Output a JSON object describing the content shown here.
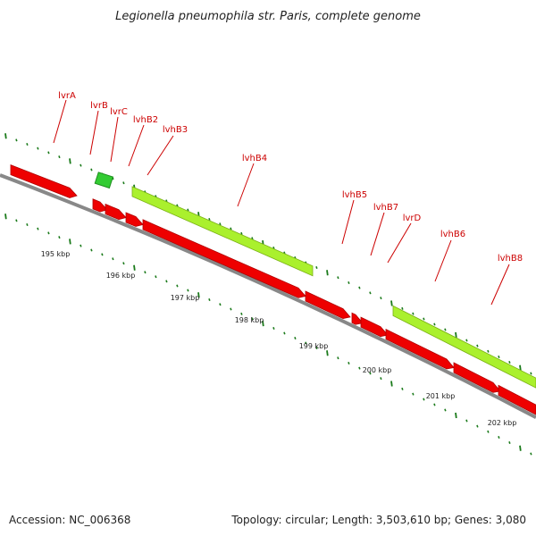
{
  "title": "Legionella pneumophila str. Paris, complete genome",
  "footer": {
    "accession": "Accession: NC_006368",
    "summary": "Topology: circular; Length: 3,503,610 bp; Genes: 3,080"
  },
  "colors": {
    "gene_red": "#ee0000",
    "gene_red_dark": "#b00000",
    "cds_lime": "#aaf02d",
    "cds_lime_dark": "#7ab016",
    "small_green": "#33cc33",
    "tick_green": "#1a7a1a",
    "backbone": "#888888",
    "label_red": "#cc0000"
  },
  "gene_labels": [
    "lvrA",
    "lvrB",
    "lvrC",
    "lvhB2",
    "lvhB3",
    "lvhB4",
    "lvhB5",
    "lvhB7",
    "lvrD",
    "lvhB6",
    "lvhB8"
  ],
  "scale_labels": [
    "195 kbp",
    "196 kbp",
    "197 kbp",
    "198 kbp",
    "199 kbp",
    "200 kbp",
    "201 kbp",
    "202 kbp"
  ]
}
